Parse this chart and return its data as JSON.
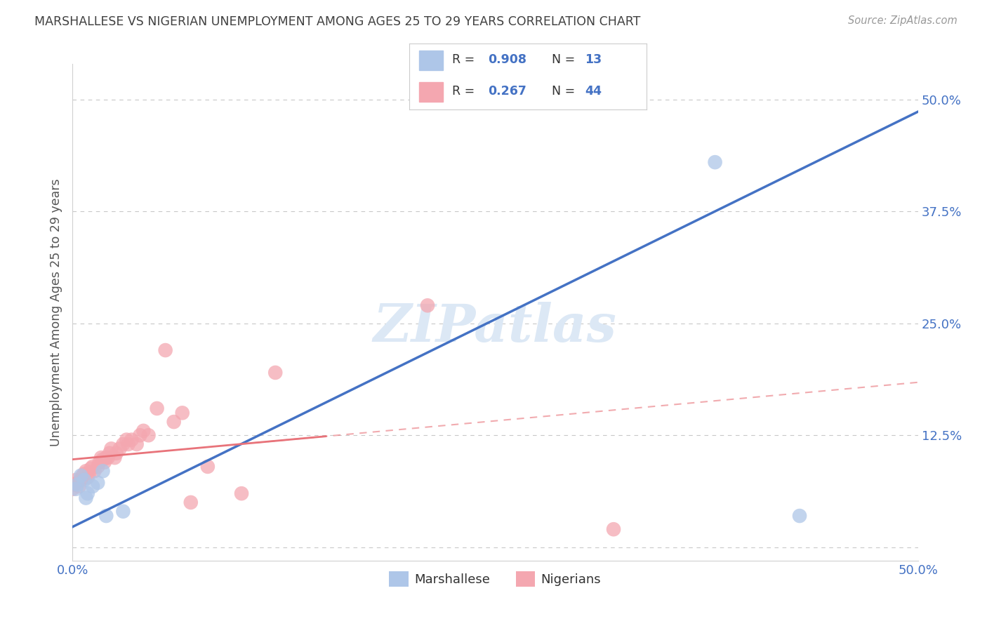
{
  "title": "MARSHALLESE VS NIGERIAN UNEMPLOYMENT AMONG AGES 25 TO 29 YEARS CORRELATION CHART",
  "source": "Source: ZipAtlas.com",
  "ylabel": "Unemployment Among Ages 25 to 29 years",
  "xlim": [
    0.0,
    0.5
  ],
  "ylim": [
    -0.015,
    0.54
  ],
  "xticks": [
    0.0,
    0.1,
    0.2,
    0.3,
    0.4,
    0.5
  ],
  "xticklabels": [
    "0.0%",
    "",
    "",
    "",
    "",
    "50.0%"
  ],
  "yticks": [
    0.0,
    0.125,
    0.25,
    0.375,
    0.5
  ],
  "yticklabels": [
    "",
    "12.5%",
    "25.0%",
    "37.5%",
    "50.0%"
  ],
  "legend_bottom": [
    "Marshallese",
    "Nigerians"
  ],
  "marshallese_x": [
    0.002,
    0.003,
    0.005,
    0.007,
    0.008,
    0.009,
    0.012,
    0.015,
    0.018,
    0.38,
    0.43,
    0.02,
    0.03
  ],
  "marshallese_y": [
    0.065,
    0.07,
    0.08,
    0.075,
    0.055,
    0.06,
    0.068,
    0.072,
    0.085,
    0.43,
    0.035,
    0.035,
    0.04
  ],
  "nigerian_x": [
    0.0,
    0.001,
    0.002,
    0.003,
    0.004,
    0.005,
    0.006,
    0.007,
    0.008,
    0.009,
    0.01,
    0.011,
    0.012,
    0.013,
    0.015,
    0.016,
    0.017,
    0.018,
    0.019,
    0.02,
    0.021,
    0.022,
    0.023,
    0.025,
    0.026,
    0.028,
    0.03,
    0.032,
    0.033,
    0.035,
    0.038,
    0.04,
    0.042,
    0.045,
    0.05,
    0.055,
    0.06,
    0.065,
    0.07,
    0.08,
    0.1,
    0.12,
    0.21,
    0.32
  ],
  "nigerian_y": [
    0.065,
    0.07,
    0.075,
    0.072,
    0.068,
    0.075,
    0.08,
    0.082,
    0.085,
    0.078,
    0.083,
    0.088,
    0.09,
    0.085,
    0.09,
    0.095,
    0.1,
    0.098,
    0.095,
    0.1,
    0.1,
    0.105,
    0.11,
    0.1,
    0.105,
    0.11,
    0.115,
    0.12,
    0.115,
    0.12,
    0.115,
    0.125,
    0.13,
    0.125,
    0.155,
    0.22,
    0.14,
    0.15,
    0.05,
    0.09,
    0.06,
    0.195,
    0.27,
    0.02
  ],
  "marshallese_color": "#aec6e8",
  "nigerian_color": "#f4a7b0",
  "marshallese_line_color": "#4472c4",
  "nigerian_line_color": "#e8737a",
  "grid_color": "#c8c8c8",
  "background_color": "#ffffff",
  "title_color": "#404040",
  "axis_color": "#4472c4",
  "watermark": "ZIPatlas",
  "watermark_color": "#dce8f5",
  "R_marsh": 0.908,
  "N_marsh": 13,
  "R_nig": 0.267,
  "N_nig": 44
}
